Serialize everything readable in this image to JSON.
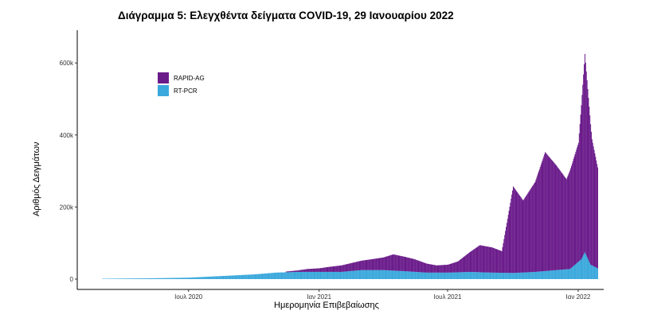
{
  "chart_data": {
    "type": "bar",
    "title": "Διάγραμμα 5: Ελεγχθέντα δείγματα COVID-19, 29 Ιανουαρίου 2022",
    "xlabel": "Ημερομηνία Επιβεβαίωσης",
    "ylabel": "Αριθμός Δειγμάτων",
    "stacked": true,
    "ylim": [
      0,
      660000
    ],
    "yticks": [
      0,
      200000,
      400000,
      600000
    ],
    "ytick_labels": [
      "0",
      "200k",
      "400k",
      "600k"
    ],
    "xticks": [
      "2020-07-01",
      "2021-01-01",
      "2021-07-01",
      "2022-01-01"
    ],
    "xtick_labels": [
      "Ιουλ 2020",
      "Ιαν 2021",
      "Ιουλ 2021",
      "Ιαν 2022"
    ],
    "x_range": [
      "2020-03-01",
      "2022-01-28"
    ],
    "legend_position": "top-left",
    "grid": false,
    "series": [
      {
        "name": "RAPID-AG",
        "color": "#6a1b8a",
        "points": [
          [
            "2020-11-15",
            2000
          ],
          [
            "2020-12-01",
            4000
          ],
          [
            "2020-12-15",
            8000
          ],
          [
            "2021-01-01",
            10000
          ],
          [
            "2021-01-15",
            14000
          ],
          [
            "2021-02-01",
            18000
          ],
          [
            "2021-02-15",
            22000
          ],
          [
            "2021-03-01",
            26000
          ],
          [
            "2021-03-15",
            30000
          ],
          [
            "2021-04-01",
            35000
          ],
          [
            "2021-04-15",
            45000
          ],
          [
            "2021-05-01",
            40000
          ],
          [
            "2021-05-15",
            35000
          ],
          [
            "2021-06-01",
            25000
          ],
          [
            "2021-06-15",
            20000
          ],
          [
            "2021-07-01",
            22000
          ],
          [
            "2021-07-15",
            30000
          ],
          [
            "2021-08-01",
            55000
          ],
          [
            "2021-08-15",
            75000
          ],
          [
            "2021-09-01",
            70000
          ],
          [
            "2021-09-15",
            60000
          ],
          [
            "2021-10-01",
            240000
          ],
          [
            "2021-10-15",
            200000
          ],
          [
            "2021-11-01",
            250000
          ],
          [
            "2021-11-15",
            330000
          ],
          [
            "2021-12-01",
            290000
          ],
          [
            "2021-12-15",
            250000
          ],
          [
            "2022-01-01",
            330000
          ],
          [
            "2022-01-10",
            550000
          ],
          [
            "2022-01-20",
            350000
          ],
          [
            "2022-01-28",
            280000
          ]
        ]
      },
      {
        "name": "RT-PCR",
        "color": "#3aa8dc",
        "points": [
          [
            "2020-03-01",
            1000
          ],
          [
            "2020-05-01",
            2000
          ],
          [
            "2020-07-01",
            4000
          ],
          [
            "2020-08-01",
            7000
          ],
          [
            "2020-09-01",
            10000
          ],
          [
            "2020-10-01",
            13000
          ],
          [
            "2020-11-01",
            18000
          ],
          [
            "2020-12-01",
            20000
          ],
          [
            "2021-01-01",
            20000
          ],
          [
            "2021-02-01",
            20000
          ],
          [
            "2021-03-01",
            25000
          ],
          [
            "2021-04-01",
            25000
          ],
          [
            "2021-05-01",
            22000
          ],
          [
            "2021-06-01",
            18000
          ],
          [
            "2021-07-01",
            18000
          ],
          [
            "2021-08-01",
            20000
          ],
          [
            "2021-09-01",
            18000
          ],
          [
            "2021-10-01",
            17000
          ],
          [
            "2021-11-01",
            20000
          ],
          [
            "2021-12-01",
            25000
          ],
          [
            "2021-12-20",
            28000
          ],
          [
            "2022-01-05",
            55000
          ],
          [
            "2022-01-10",
            75000
          ],
          [
            "2022-01-18",
            40000
          ],
          [
            "2022-01-28",
            30000
          ]
        ]
      }
    ]
  }
}
